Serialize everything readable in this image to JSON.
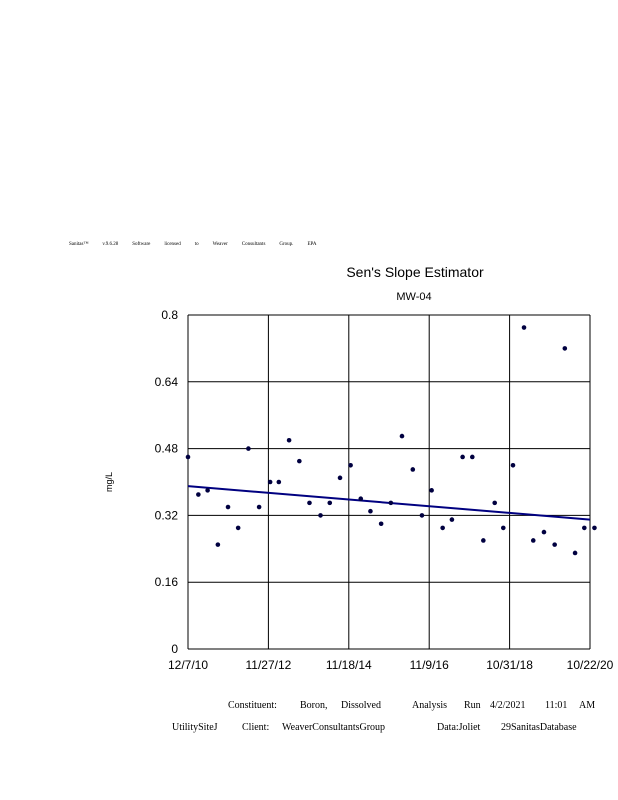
{
  "banner": [
    "Sanitas™",
    "v.9.6.28",
    "Software",
    "licensed",
    "to",
    "Weaver",
    "Consultants",
    "Group.",
    "EPA"
  ],
  "footer": {
    "constituent_label": "Constituent:",
    "constituent_value": "Boron,",
    "constituent_value2": "Dissolved",
    "analysis": "Analysis",
    "run": "Run",
    "date": "4/2/2021",
    "time": "11:01",
    "ampm": "AM",
    "site": "UtilitySiteJ",
    "client_label": "Client:",
    "client_value": "WeaverConsultantsGroup",
    "data_label": "Data:Joliet",
    "database": "29SanitasDatabase"
  },
  "chart_data": {
    "type": "scatter",
    "title": "Sen's Slope Estimator",
    "subtitle": "MW-04",
    "ylabel": "mg/L",
    "xlabel": "",
    "ylim": [
      0,
      0.8
    ],
    "yticks": [
      "0",
      "0.16",
      "0.32",
      "0.48",
      "0.64",
      "0.8"
    ],
    "xticks": [
      "12/7/10",
      "11/27/12",
      "11/18/14",
      "11/9/16",
      "10/31/18",
      "10/22/20"
    ],
    "grid": true,
    "colors": {
      "points": "#000040",
      "trend": "#000080",
      "grid": "#000000"
    },
    "series": [
      {
        "x": [
          "2010-12-07",
          "2011-03-10",
          "2011-06-01",
          "2011-09-01",
          "2011-12-01",
          "2012-03-01",
          "2012-06-01",
          "2012-09-05",
          "2012-12-13",
          "2013-03-01",
          "2013-06-01",
          "2013-09-01",
          "2013-12-01",
          "2014-03-10",
          "2014-06-01",
          "2014-09-01",
          "2014-12-05",
          "2015-03-06",
          "2015-06-01",
          "2015-09-05",
          "2015-12-01",
          "2016-03-10",
          "2016-06-15",
          "2016-09-05",
          "2016-12-01",
          "2017-03-10",
          "2017-06-01",
          "2017-09-05",
          "2017-12-01",
          "2018-03-10",
          "2018-06-20",
          "2018-09-05",
          "2018-12-01",
          "2019-03-10",
          "2019-06-01",
          "2019-09-05",
          "2019-12-10",
          "2020-03-10",
          "2020-06-10",
          "2020-09-01",
          "2020-12-01"
        ],
        "values": [
          0.46,
          0.37,
          0.38,
          0.25,
          0.34,
          0.29,
          0.48,
          0.34,
          0.4,
          0.4,
          0.5,
          0.45,
          0.35,
          0.32,
          0.35,
          0.41,
          0.44,
          0.36,
          0.33,
          0.3,
          0.35,
          0.51,
          0.43,
          0.32,
          0.38,
          0.29,
          0.31,
          0.46,
          0.46,
          0.26,
          0.35,
          0.29,
          0.44,
          0.77,
          0.26,
          0.28,
          0.25,
          0.72,
          0.23,
          0.29,
          0.29
        ]
      }
    ],
    "trend_line": {
      "x": [
        "2010-12-07",
        "2020-10-22"
      ],
      "y": [
        0.39,
        0.31
      ]
    }
  }
}
